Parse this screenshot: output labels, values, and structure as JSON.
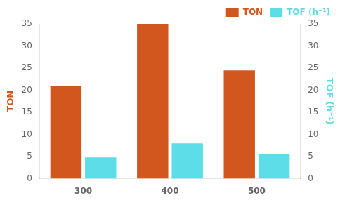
{
  "chart_data": {
    "type": "bar",
    "categories": [
      "300",
      "400",
      "500"
    ],
    "series": [
      {
        "name": "TON",
        "color": "#D2571E",
        "values": [
          21,
          35,
          24.5
        ]
      },
      {
        "name": "TOF (h⁻¹)",
        "color": "#5DDDE8",
        "values": [
          4.8,
          8,
          5.5
        ],
        "axis": "y2"
      }
    ],
    "ylabel": "TON",
    "y2label": "TOF (h⁻¹)",
    "ylim": [
      0,
      35
    ],
    "yticks": [
      0,
      5,
      10,
      15,
      20,
      25,
      30,
      35
    ],
    "y2lim": [
      0,
      35
    ],
    "y2ticks": [
      0,
      5,
      10,
      15,
      20,
      25,
      30,
      35
    ],
    "grid": false,
    "legend": "upper right"
  }
}
